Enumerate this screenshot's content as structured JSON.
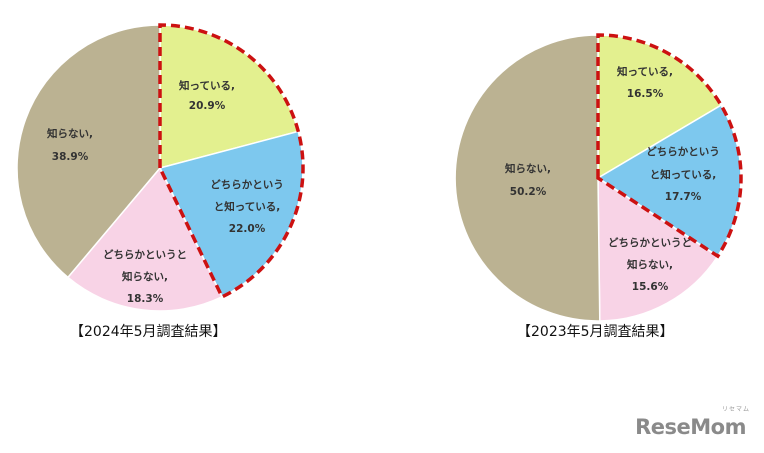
{
  "chart_data": [
    {
      "type": "pie",
      "title": "【2024年5月調査結果】",
      "slices": [
        {
          "label": "知っている,",
          "value": 20.9,
          "value_text": "20.9%",
          "color": "#e3f08f",
          "highlighted": true
        },
        {
          "label": "どちらかというと知っている,",
          "value": 22.0,
          "value_text": "22.0%",
          "color": "#7dc8ee",
          "highlighted": true
        },
        {
          "label": "どちらかというと知らない,",
          "value": 18.3,
          "value_text": "18.3%",
          "color": "#f8d3e6",
          "highlighted": false
        },
        {
          "label": "知らない,",
          "value": 38.9,
          "value_text": "38.9%",
          "color": "#bbb292",
          "highlighted": false
        }
      ],
      "highlight_color": "#cc1111"
    },
    {
      "type": "pie",
      "title": "【2023年5月調査結果】",
      "slices": [
        {
          "label": "知っている,",
          "value": 16.5,
          "value_text": "16.5%",
          "color": "#e3f08f",
          "highlighted": true
        },
        {
          "label": "どちらかというと知っている,",
          "value": 17.7,
          "value_text": "17.7%",
          "color": "#7dc8ee",
          "highlighted": true
        },
        {
          "label": "どちらかというと知らない,",
          "value": 15.6,
          "value_text": "15.6%",
          "color": "#f8d3e6",
          "highlighted": false
        },
        {
          "label": "知らない,",
          "value": 50.2,
          "value_text": "50.2%",
          "color": "#bbb292",
          "highlighted": false
        }
      ],
      "highlight_color": "#cc1111"
    }
  ],
  "watermark": {
    "text": "ReseMom",
    "mark": "リセマム"
  }
}
